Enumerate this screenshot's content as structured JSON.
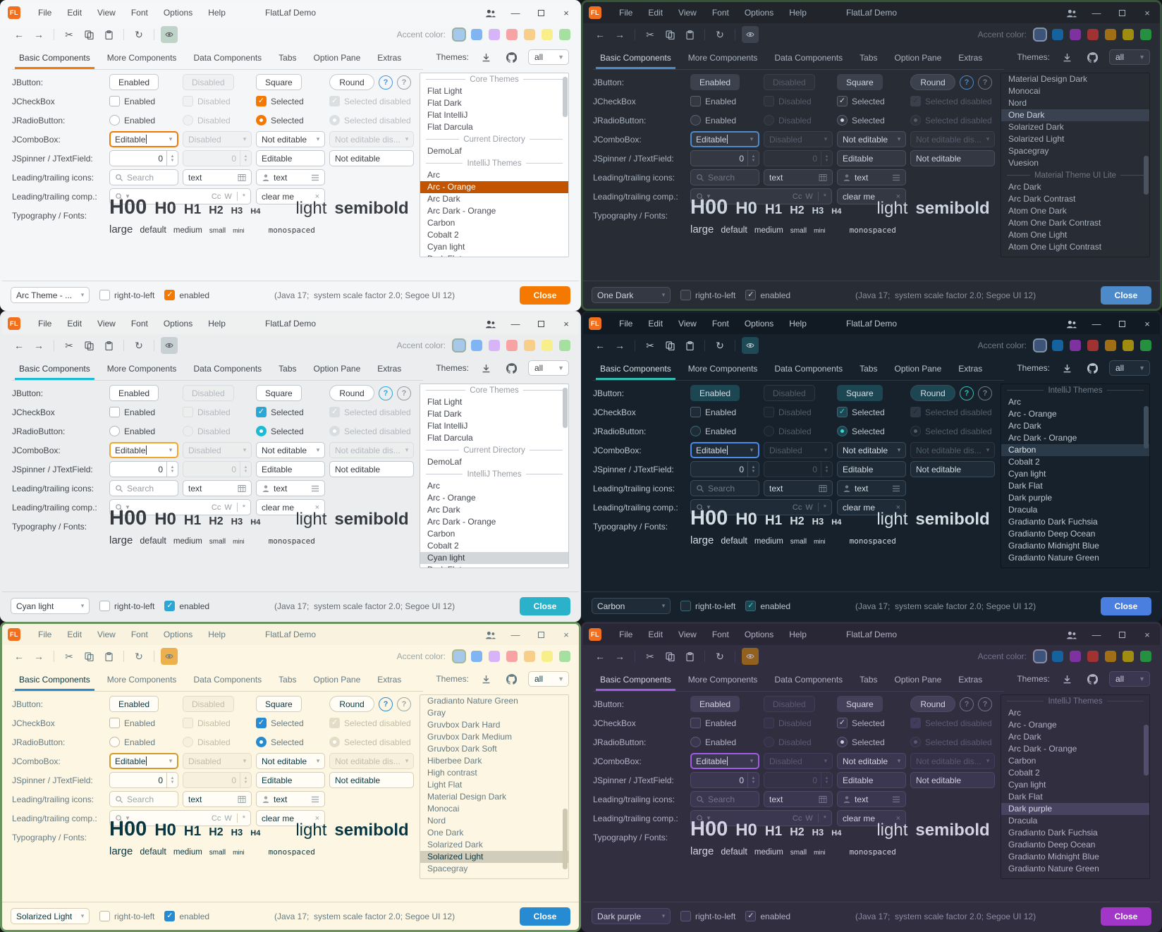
{
  "shared": {
    "window": {
      "logo": "FL",
      "menus": [
        "File",
        "Edit",
        "View",
        "Font",
        "Options",
        "Help"
      ],
      "title": "FlatLaf Demo",
      "accent_color_label": "Accent color:",
      "controls": {
        "minimize": "—",
        "close": "×"
      }
    },
    "toolbar": {
      "back": "←",
      "forward": "→",
      "cut": "✂",
      "refresh": "↻"
    },
    "tabs": [
      "Basic Components",
      "More Components",
      "Data Components",
      "Tabs",
      "Option Pane",
      "Extras"
    ],
    "active_tab": "Basic Components",
    "themes_header": {
      "label": "Themes:",
      "filter_value": "all"
    },
    "rows": {
      "jbutton": {
        "label": "JButton:",
        "enabled": "Enabled",
        "disabled": "Disabled",
        "square": "Square",
        "round": "Round",
        "help": "?"
      },
      "jcheckbox": {
        "label": "JCheckBox",
        "enabled": "Enabled",
        "disabled": "Disabled",
        "selected": "Selected",
        "selected_disabled": "Selected disabled"
      },
      "jradiobutton": {
        "label": "JRadioButton:",
        "enabled": "Enabled",
        "disabled": "Disabled",
        "selected": "Selected",
        "selected_disabled": "Selected disabled"
      },
      "jcombobox": {
        "label": "JComboBox:",
        "editable": "Editable",
        "disabled": "Disabled",
        "not_editable": "Not editable",
        "not_editable_disabled": "Not editable dis..."
      },
      "jspinner": {
        "label": "JSpinner / JTextField:",
        "value": "0",
        "editable": "Editable",
        "not_editable": "Not editable"
      },
      "leading_icons": {
        "label": "Leading/trailing icons:",
        "search_placeholder": "Search",
        "text1": "text",
        "text2": "text"
      },
      "leading_comp": {
        "label": "Leading/trailing comp.:",
        "match_case": "Cc",
        "whole_word": "W",
        "regex": "*",
        "clear_text": "clear me",
        "clear_icon": "×"
      },
      "typography": {
        "label": "Typography / Fonts:",
        "samples": [
          "H00",
          "H0",
          "H1",
          "H2",
          "H3",
          "H4"
        ],
        "light": "light",
        "semibold": "semibold",
        "sizes": [
          "large",
          "default",
          "medium",
          "small",
          "mini"
        ],
        "monospaced": "monospaced"
      }
    },
    "footer": {
      "rtl_label": "right-to-left",
      "enabled_label": "enabled",
      "status": "(Java 17;  system scale factor 2.0; Segoe UI 12)",
      "close_label": "Close"
    }
  },
  "panels": [
    {
      "mode": "light",
      "theme_combo_value": "Arc Theme - ...",
      "accent_swatches": [
        "#a6c8ea",
        "#7fb5f2",
        "#d7b3f7",
        "#f7a3a3",
        "#f8cf8a",
        "#f8ef8a",
        "#a5e0a0"
      ],
      "colors": {
        "bg": "#f5f6f7",
        "titlebar": "#f6f7f8",
        "text": "#4b4e54",
        "muted": "#9a9ea4",
        "disabled": "#b9bcc1",
        "strong": "#3a3d43",
        "ctrlBg": "#ffffff",
        "ctrlBorder": "#c6cace",
        "ctrlDisBg": "#f0f1f2",
        "ctrlDisBorder": "#dcdfe2",
        "accent": "#f57900",
        "comboFocus": "#f57900",
        "help": "#4494e6",
        "listBg": "#ffffff",
        "listBorder": "#c9cdd1",
        "listSelBg": "#c25400",
        "listSelText": "#ffffff",
        "sepText": "#9a9ea4",
        "sepLine": "#cdd1d5",
        "closeBg": "#f57900",
        "closeText": "#ffffff",
        "eyeBg": "#c0d3c8",
        "squareBg": "#ffffff",
        "checkFill": "#f57900",
        "checkMark": "#ffffff",
        "checkBorder": "#b6bac0",
        "checkedBorder": "#f57900",
        "radioDot": "#ffffff",
        "footSep": "#d8dbde",
        "scrollThumb": "#c6cbd0",
        "statusText": "#6b6f75",
        "swatchRing": "#97b0a2",
        "frame": "#00000000",
        "toolIcon": "#5a5e64"
      },
      "themes_list": {
        "items": [
          {
            "type": "sep",
            "label": "Core Themes"
          },
          {
            "type": "item",
            "label": "Flat Light"
          },
          {
            "type": "item",
            "label": "Flat Dark"
          },
          {
            "type": "item",
            "label": "Flat IntelliJ"
          },
          {
            "type": "item",
            "label": "Flat Darcula"
          },
          {
            "type": "sep",
            "label": "Current Directory"
          },
          {
            "type": "item",
            "label": "DemoLaf"
          },
          {
            "type": "sep",
            "label": "IntelliJ Themes"
          },
          {
            "type": "item",
            "label": "Arc"
          },
          {
            "type": "item",
            "label": "Arc - Orange",
            "selected": true
          },
          {
            "type": "item",
            "label": "Arc Dark"
          },
          {
            "type": "item",
            "label": "Arc Dark - Orange"
          },
          {
            "type": "item",
            "label": "Carbon"
          },
          {
            "type": "item",
            "label": "Cobalt 2"
          },
          {
            "type": "item",
            "label": "Cyan light"
          },
          {
            "type": "item",
            "label": "Dark Flat",
            "clipped": true
          }
        ],
        "scrollbar": {
          "top_pct": 2,
          "height_pct": 22
        }
      }
    },
    {
      "mode": "dark",
      "theme_combo_value": "One Dark",
      "accent_swatches": [
        "#3d5377",
        "#15639e",
        "#7e32a0",
        "#a03232",
        "#a06f15",
        "#a08d10",
        "#259040"
      ],
      "colors": {
        "bg": "#282c34",
        "titlebar": "#21252b",
        "text": "#a8b1be",
        "muted": "#6e7683",
        "disabled": "#555d6b",
        "strong": "#cdd5e1",
        "ctrlBg": "#333842",
        "ctrlBorder": "#4a515e",
        "ctrlDisBg": "#2d323b",
        "ctrlDisBorder": "#3a414c",
        "accent": "#4d8ac9",
        "comboFocus": "#4d8ac9",
        "help": "#4d8ac9",
        "listBg": "#282c34",
        "listBorder": "#1d2126",
        "listSelBg": "#3a4150",
        "listSelText": "#cdd5e1",
        "sepText": "#6e7683",
        "sepLine": "#454c58",
        "closeBg": "#4d8ac9",
        "closeText": "#ffffff",
        "eyeBg": "#3d434e",
        "squareBg": "#3b414d",
        "checkFill": "#333842",
        "checkMark": "#cdd5e1",
        "checkBorder": "#5a6270",
        "checkedBorder": "#5a6270",
        "radioDot": "#cdd5e1",
        "footSep": "#3a404a",
        "scrollThumb": "#4a525f",
        "statusText": "#87909d",
        "swatchRing": "#8494ab",
        "frame": "#39523b",
        "toolIcon": "#a8b1be"
      },
      "themes_list": {
        "items": [
          {
            "type": "item",
            "label": "Material Design Dark"
          },
          {
            "type": "item",
            "label": "Monocai"
          },
          {
            "type": "item",
            "label": "Nord"
          },
          {
            "type": "item",
            "label": "One Dark",
            "selected": true
          },
          {
            "type": "item",
            "label": "Solarized Dark"
          },
          {
            "type": "item",
            "label": "Solarized Light"
          },
          {
            "type": "item",
            "label": "Spacegray"
          },
          {
            "type": "item",
            "label": "Vuesion"
          },
          {
            "type": "sep",
            "label": "Material Theme UI Lite"
          },
          {
            "type": "item",
            "label": "Arc Dark"
          },
          {
            "type": "item",
            "label": "Arc Dark Contrast"
          },
          {
            "type": "item",
            "label": "Atom One Dark"
          },
          {
            "type": "item",
            "label": "Atom One Dark Contrast"
          },
          {
            "type": "item",
            "label": "Atom One Light"
          },
          {
            "type": "item",
            "label": "Atom One Light Contrast"
          }
        ],
        "scrollbar": {
          "top_pct": 45,
          "height_pct": 21
        }
      }
    },
    {
      "mode": "light",
      "theme_combo_value": "Cyan light",
      "accent_swatches": [
        "#a6c8ea",
        "#7fb5f2",
        "#d7b3f7",
        "#f7a3a3",
        "#f8cf8a",
        "#f8ef8a",
        "#a5e0a0"
      ],
      "colors": {
        "bg": "#ebedee",
        "titlebar": "#eff1f1",
        "text": "#42474e",
        "muted": "#979ca3",
        "disabled": "#b5b9bf",
        "strong": "#353a41",
        "ctrlBg": "#ffffff",
        "ctrlBorder": "#c2c7cb",
        "ctrlDisBg": "#eceeee",
        "ctrlDisBorder": "#dadde0",
        "accent": "#19bcd4",
        "comboFocus": "#efa72c",
        "help": "#2fa5d6",
        "listBg": "#ffffff",
        "listBorder": "#c6cacd",
        "listSelBg": "#d4d7da",
        "listSelText": "#33383f",
        "sepText": "#979ca3",
        "sepLine": "#cbced2",
        "closeBg": "#29b2c9",
        "closeText": "#ffffff",
        "eyeBg": "#c7d1d3",
        "squareBg": "#ffffff",
        "checkFill": "#2aa7d4",
        "checkMark": "#ffffff",
        "checkBorder": "#b3b8be",
        "checkedBorder": "#2aa7d4",
        "radioDot": "#ffffff",
        "footSep": "#d4d7da",
        "scrollThumb": "#c5cace",
        "statusText": "#676c73",
        "swatchRing": "#97b0a2",
        "frame": "#00000000",
        "toolIcon": "#585d64"
      },
      "themes_list": {
        "items": [
          {
            "type": "sep",
            "label": "Core Themes"
          },
          {
            "type": "item",
            "label": "Flat Light"
          },
          {
            "type": "item",
            "label": "Flat Dark"
          },
          {
            "type": "item",
            "label": "Flat IntelliJ"
          },
          {
            "type": "item",
            "label": "Flat Darcula"
          },
          {
            "type": "sep",
            "label": "Current Directory"
          },
          {
            "type": "item",
            "label": "DemoLaf"
          },
          {
            "type": "sep",
            "label": "IntelliJ Themes"
          },
          {
            "type": "item",
            "label": "Arc"
          },
          {
            "type": "item",
            "label": "Arc - Orange"
          },
          {
            "type": "item",
            "label": "Arc Dark"
          },
          {
            "type": "item",
            "label": "Arc Dark - Orange"
          },
          {
            "type": "item",
            "label": "Carbon"
          },
          {
            "type": "item",
            "label": "Cobalt 2"
          },
          {
            "type": "item",
            "label": "Cyan light",
            "selected": true
          },
          {
            "type": "item",
            "label": "Dark Flat",
            "clipped": true
          }
        ],
        "scrollbar": {
          "top_pct": 2,
          "height_pct": 22
        }
      }
    },
    {
      "mode": "dark",
      "theme_combo_value": "Carbon",
      "accent_swatches": [
        "#3d5377",
        "#15639e",
        "#7e32a0",
        "#a03232",
        "#a06f15",
        "#a08d10",
        "#259040"
      ],
      "colors": {
        "bg": "#17212b",
        "titlebar": "#111922",
        "text": "#bcc5cd",
        "muted": "#6f7b86",
        "disabled": "#505d68",
        "strong": "#d6dee5",
        "ctrlBg": "#1f2b36",
        "ctrlBorder": "#3a4a57",
        "ctrlDisBg": "#1b2530",
        "ctrlDisBorder": "#2c3945",
        "accent": "#32bdb3",
        "comboFocus": "#4b8ceb",
        "help": "#35bdb3",
        "listBg": "#17212b",
        "listBorder": "#0d141b",
        "listSelBg": "#2a3a48",
        "listSelText": "#dce4ea",
        "sepText": "#6f7b86",
        "sepLine": "#36434f",
        "closeBg": "#4a7fdf",
        "closeText": "#ffffff",
        "eyeBg": "#1d4a54",
        "squareBg": "#1d4653",
        "checkFill": "#1d4653",
        "checkMark": "#3fd8cc",
        "checkBorder": "#3a6a74",
        "checkedBorder": "#3a6a74",
        "radioDot": "#3fd8cc",
        "footSep": "#2b3844",
        "scrollThumb": "#3e4e5c",
        "statusText": "#8895a1",
        "swatchRing": "#7d93a8",
        "frame": "#00000000",
        "toolIcon": "#bcc5cd"
      },
      "themes_list": {
        "items": [
          {
            "type": "sep",
            "label": "IntelliJ Themes"
          },
          {
            "type": "item",
            "label": "Arc"
          },
          {
            "type": "item",
            "label": "Arc - Orange"
          },
          {
            "type": "item",
            "label": "Arc Dark"
          },
          {
            "type": "item",
            "label": "Arc Dark - Orange"
          },
          {
            "type": "item",
            "label": "Carbon",
            "selected": true
          },
          {
            "type": "item",
            "label": "Cobalt 2"
          },
          {
            "type": "item",
            "label": "Cyan light"
          },
          {
            "type": "item",
            "label": "Dark Flat"
          },
          {
            "type": "item",
            "label": "Dark purple"
          },
          {
            "type": "item",
            "label": "Dracula"
          },
          {
            "type": "item",
            "label": "Gradianto Dark Fuchsia"
          },
          {
            "type": "item",
            "label": "Gradianto Deep Ocean"
          },
          {
            "type": "item",
            "label": "Gradianto Midnight Blue"
          },
          {
            "type": "item",
            "label": "Gradianto Nature Green"
          }
        ],
        "scrollbar": {
          "top_pct": 12,
          "height_pct": 23
        }
      }
    },
    {
      "mode": "light",
      "theme_combo_value": "Solarized Light",
      "accent_swatches": [
        "#a6c8ea",
        "#7fb5f2",
        "#d7b3f7",
        "#f7a3a3",
        "#f8cf8a",
        "#f8ef8a",
        "#a5e0a0"
      ],
      "colors": {
        "bg": "#fdf6e3",
        "titlebar": "#f9f2df",
        "text": "#657b83",
        "muted": "#9aa7a8",
        "disabled": "#c3bda5",
        "strong": "#073642",
        "ctrlBg": "#fffdf6",
        "ctrlBorder": "#d5cdb4",
        "ctrlDisBg": "#f7f0dd",
        "ctrlDisBorder": "#e4ddc6",
        "accent": "#268bd2",
        "comboFocus": "#d49a2c",
        "help": "#268bd2",
        "listBg": "#fdf6e3",
        "listBorder": "#d9d2bb",
        "listSelBg": "#d2cdbb",
        "listSelText": "#073642",
        "sepText": "#9aa7a8",
        "sepLine": "#d5cdb4",
        "closeBg": "#268bd2",
        "closeText": "#ffffff",
        "eyeBg": "#edb04e",
        "squareBg": "#fffdf6",
        "checkFill": "#268bd2",
        "checkMark": "#ffffff",
        "checkBorder": "#c1bba2",
        "checkedBorder": "#268bd2",
        "radioDot": "#ffffff",
        "footSep": "#ddd6bf",
        "scrollThumb": "#cfc8b0",
        "statusText": "#657b83",
        "swatchRing": "#a8b88f",
        "frame": "#68935c",
        "toolIcon": "#657b83"
      },
      "themes_list": {
        "items": [
          {
            "type": "item",
            "label": "Gradianto Nature Green"
          },
          {
            "type": "item",
            "label": "Gray"
          },
          {
            "type": "item",
            "label": "Gruvbox Dark Hard"
          },
          {
            "type": "item",
            "label": "Gruvbox Dark Medium"
          },
          {
            "type": "item",
            "label": "Gruvbox Dark Soft"
          },
          {
            "type": "item",
            "label": "Hiberbee Dark"
          },
          {
            "type": "item",
            "label": "High contrast"
          },
          {
            "type": "item",
            "label": "Light Flat"
          },
          {
            "type": "item",
            "label": "Material Design Dark"
          },
          {
            "type": "item",
            "label": "Monocai"
          },
          {
            "type": "item",
            "label": "Nord"
          },
          {
            "type": "item",
            "label": "One Dark"
          },
          {
            "type": "item",
            "label": "Solarized Dark"
          },
          {
            "type": "item",
            "label": "Solarized Light",
            "selected": true
          },
          {
            "type": "item",
            "label": "Spacegray"
          }
        ],
        "scrollbar": {
          "top_pct": 62,
          "height_pct": 33
        }
      }
    },
    {
      "mode": "dark",
      "theme_combo_value": "Dark purple",
      "accent_swatches": [
        "#3d5377",
        "#15639e",
        "#7e32a0",
        "#a03232",
        "#a06f15",
        "#a08d10",
        "#259040"
      ],
      "colors": {
        "bg": "#312e40",
        "titlebar": "#292635",
        "text": "#b4b0c5",
        "muted": "#76718b",
        "disabled": "#5d5873",
        "strong": "#d5d2e3",
        "ctrlBg": "#3b3750",
        "ctrlBorder": "#4e4968",
        "ctrlDisBg": "#353147",
        "ctrlDisBorder": "#423d5c",
        "accent": "#a15ce5",
        "comboFocus": "#a15ce5",
        "help": "#716d8a",
        "listBg": "#312e40",
        "listBorder": "#221f2e",
        "listSelBg": "#484361",
        "listSelText": "#d9d6e6",
        "sepText": "#76718b",
        "sepLine": "#474258",
        "closeBg": "#a236c8",
        "closeText": "#ffffff",
        "eyeBg": "#92611d",
        "squareBg": "#454059",
        "checkFill": "#3b3750",
        "checkMark": "#cfccdf",
        "checkBorder": "#5e5976",
        "checkedBorder": "#5e5976",
        "radioDot": "#cfccdf",
        "footSep": "#413c56",
        "scrollThumb": "#534e6c",
        "statusText": "#8e8aa3",
        "swatchRing": "#8d89a8",
        "frame": "#00000000",
        "toolIcon": "#b4b0c5"
      },
      "themes_list": {
        "items": [
          {
            "type": "sep",
            "label": "IntelliJ Themes"
          },
          {
            "type": "item",
            "label": "Arc"
          },
          {
            "type": "item",
            "label": "Arc - Orange"
          },
          {
            "type": "item",
            "label": "Arc Dark"
          },
          {
            "type": "item",
            "label": "Arc Dark - Orange"
          },
          {
            "type": "item",
            "label": "Carbon"
          },
          {
            "type": "item",
            "label": "Cobalt 2"
          },
          {
            "type": "item",
            "label": "Cyan light"
          },
          {
            "type": "item",
            "label": "Dark Flat"
          },
          {
            "type": "item",
            "label": "Dark purple",
            "selected": true
          },
          {
            "type": "item",
            "label": "Dracula"
          },
          {
            "type": "item",
            "label": "Gradianto Dark Fuchsia"
          },
          {
            "type": "item",
            "label": "Gradianto Deep Ocean"
          },
          {
            "type": "item",
            "label": "Gradianto Midnight Blue"
          },
          {
            "type": "item",
            "label": "Gradianto Nature Green"
          }
        ],
        "scrollbar": {
          "top_pct": 16,
          "height_pct": 28
        }
      }
    }
  ]
}
